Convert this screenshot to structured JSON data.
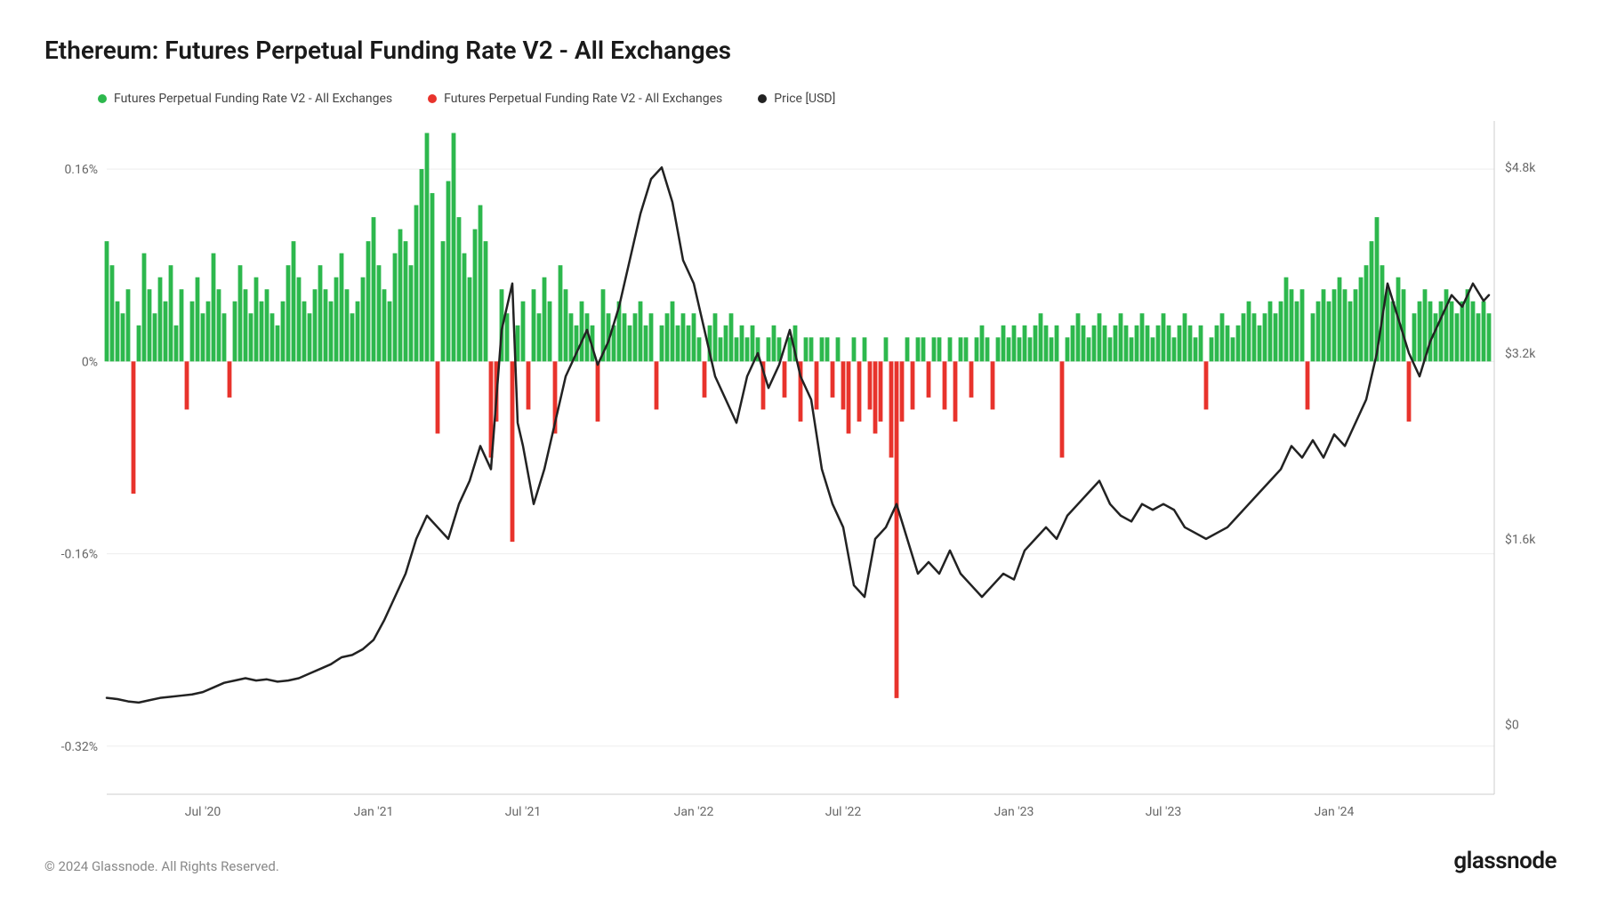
{
  "title": "Ethereum: Futures Perpetual Funding Rate V2 - All Exchanges",
  "copyright": "© 2024 Glassnode. All Rights Reserved.",
  "brand": "glassnode",
  "legend": {
    "pos": {
      "label": "Futures Perpetual Funding Rate V2 - All Exchanges",
      "color": "#2db84d"
    },
    "neg": {
      "label": "Futures Perpetual Funding Rate V2 - All Exchanges",
      "color": "#e8332c"
    },
    "price": {
      "label": "Price [USD]",
      "color": "#222222"
    }
  },
  "chart": {
    "type": "combo-bar-line",
    "background": "#ffffff",
    "grid_color": "#ededed",
    "axis_color": "#cccccc",
    "tick_color": "#666666",
    "tick_fontsize": 14,
    "left_axis": {
      "min": -0.0036,
      "max": 0.002,
      "ticks": [
        {
          "v": 0.0016,
          "label": "0.16%"
        },
        {
          "v": 0,
          "label": "0%"
        },
        {
          "v": -0.0016,
          "label": "-0.16%"
        },
        {
          "v": -0.0032,
          "label": "-0.32%"
        }
      ],
      "zero": 0
    },
    "right_axis": {
      "min": -600,
      "max": 5200,
      "ticks": [
        {
          "v": 4800,
          "label": "$4.8k"
        },
        {
          "v": 3200,
          "label": "$3.2k"
        },
        {
          "v": 1600,
          "label": "$1.6k"
        },
        {
          "v": 0,
          "label": "$0"
        }
      ]
    },
    "x_axis": {
      "min": 0,
      "max": 260,
      "ticks": [
        {
          "v": 18,
          "label": "Jul '20"
        },
        {
          "v": 50,
          "label": "Jan '21"
        },
        {
          "v": 78,
          "label": "Jul '21"
        },
        {
          "v": 110,
          "label": "Jan '22"
        },
        {
          "v": 138,
          "label": "Jul '22"
        },
        {
          "v": 170,
          "label": "Jan '23"
        },
        {
          "v": 198,
          "label": "Jul '23"
        },
        {
          "v": 230,
          "label": "Jan '24"
        }
      ]
    },
    "bars": [
      [
        0,
        0.001
      ],
      [
        1,
        0.0008
      ],
      [
        2,
        0.0005
      ],
      [
        3,
        0.0004
      ],
      [
        4,
        0.0006
      ],
      [
        5,
        -0.0011
      ],
      [
        6,
        0.0003
      ],
      [
        7,
        0.0009
      ],
      [
        8,
        0.0006
      ],
      [
        9,
        0.0004
      ],
      [
        10,
        0.0007
      ],
      [
        11,
        0.0005
      ],
      [
        12,
        0.0008
      ],
      [
        13,
        0.0003
      ],
      [
        14,
        0.0006
      ],
      [
        15,
        -0.0004
      ],
      [
        16,
        0.0005
      ],
      [
        17,
        0.0007
      ],
      [
        18,
        0.0004
      ],
      [
        19,
        0.0005
      ],
      [
        20,
        0.0009
      ],
      [
        21,
        0.0006
      ],
      [
        22,
        0.0004
      ],
      [
        23,
        -0.0003
      ],
      [
        24,
        0.0005
      ],
      [
        25,
        0.0008
      ],
      [
        26,
        0.0006
      ],
      [
        27,
        0.0004
      ],
      [
        28,
        0.0007
      ],
      [
        29,
        0.0005
      ],
      [
        30,
        0.0006
      ],
      [
        31,
        0.0004
      ],
      [
        32,
        0.0003
      ],
      [
        33,
        0.0005
      ],
      [
        34,
        0.0008
      ],
      [
        35,
        0.001
      ],
      [
        36,
        0.0007
      ],
      [
        37,
        0.0005
      ],
      [
        38,
        0.0004
      ],
      [
        39,
        0.0006
      ],
      [
        40,
        0.0008
      ],
      [
        41,
        0.0006
      ],
      [
        42,
        0.0005
      ],
      [
        43,
        0.0007
      ],
      [
        44,
        0.0009
      ],
      [
        45,
        0.0006
      ],
      [
        46,
        0.0004
      ],
      [
        47,
        0.0005
      ],
      [
        48,
        0.0007
      ],
      [
        49,
        0.001
      ],
      [
        50,
        0.0012
      ],
      [
        51,
        0.0008
      ],
      [
        52,
        0.0006
      ],
      [
        53,
        0.0005
      ],
      [
        54,
        0.0009
      ],
      [
        55,
        0.0011
      ],
      [
        56,
        0.001
      ],
      [
        57,
        0.0008
      ],
      [
        58,
        0.0013
      ],
      [
        59,
        0.0016
      ],
      [
        60,
        0.0019
      ],
      [
        61,
        0.0014
      ],
      [
        62,
        -0.0006
      ],
      [
        63,
        0.001
      ],
      [
        64,
        0.0015
      ],
      [
        65,
        0.0019
      ],
      [
        66,
        0.0012
      ],
      [
        67,
        0.0009
      ],
      [
        68,
        0.0007
      ],
      [
        69,
        0.0011
      ],
      [
        70,
        0.0013
      ],
      [
        71,
        0.001
      ],
      [
        72,
        -0.0008
      ],
      [
        73,
        -0.0005
      ],
      [
        74,
        0.0006
      ],
      [
        75,
        0.0004
      ],
      [
        76,
        -0.0015
      ],
      [
        77,
        0.0003
      ],
      [
        78,
        0.0005
      ],
      [
        79,
        -0.0004
      ],
      [
        80,
        0.0006
      ],
      [
        81,
        0.0004
      ],
      [
        82,
        0.0007
      ],
      [
        83,
        0.0005
      ],
      [
        84,
        -0.0006
      ],
      [
        85,
        0.0008
      ],
      [
        86,
        0.0006
      ],
      [
        87,
        0.0004
      ],
      [
        88,
        0.0003
      ],
      [
        89,
        0.0005
      ],
      [
        90,
        0.0004
      ],
      [
        91,
        0.0003
      ],
      [
        92,
        -0.0005
      ],
      [
        93,
        0.0006
      ],
      [
        94,
        0.0004
      ],
      [
        95,
        0.0003
      ],
      [
        96,
        0.0005
      ],
      [
        97,
        0.0004
      ],
      [
        98,
        0.0003
      ],
      [
        99,
        0.0004
      ],
      [
        100,
        0.0005
      ],
      [
        101,
        0.0003
      ],
      [
        102,
        0.0004
      ],
      [
        103,
        -0.0004
      ],
      [
        104,
        0.0003
      ],
      [
        105,
        0.0004
      ],
      [
        106,
        0.0005
      ],
      [
        107,
        0.0003
      ],
      [
        108,
        0.0004
      ],
      [
        109,
        0.0003
      ],
      [
        110,
        0.0004
      ],
      [
        111,
        0.0002
      ],
      [
        112,
        -0.0003
      ],
      [
        113,
        0.0003
      ],
      [
        114,
        0.0004
      ],
      [
        115,
        0.0002
      ],
      [
        116,
        0.0003
      ],
      [
        117,
        0.0004
      ],
      [
        118,
        0.0002
      ],
      [
        119,
        0.0003
      ],
      [
        120,
        0.0002
      ],
      [
        121,
        0.0003
      ],
      [
        122,
        0.0002
      ],
      [
        123,
        -0.0004
      ],
      [
        124,
        0.0002
      ],
      [
        125,
        0.0003
      ],
      [
        126,
        0.0002
      ],
      [
        127,
        -0.0003
      ],
      [
        128,
        0.0002
      ],
      [
        129,
        0.0003
      ],
      [
        130,
        -0.0005
      ],
      [
        131,
        0.0002
      ],
      [
        132,
        0.0002
      ],
      [
        133,
        -0.0004
      ],
      [
        134,
        0.0002
      ],
      [
        135,
        0.0002
      ],
      [
        136,
        -0.0003
      ],
      [
        137,
        0.0002
      ],
      [
        138,
        -0.0004
      ],
      [
        139,
        -0.0006
      ],
      [
        140,
        0.0002
      ],
      [
        141,
        -0.0005
      ],
      [
        142,
        0.0002
      ],
      [
        143,
        -0.0004
      ],
      [
        144,
        -0.0006
      ],
      [
        145,
        -0.0005
      ],
      [
        146,
        0.0002
      ],
      [
        147,
        -0.0008
      ],
      [
        148,
        -0.0028
      ],
      [
        149,
        -0.0005
      ],
      [
        150,
        0.0002
      ],
      [
        151,
        -0.0004
      ],
      [
        152,
        0.0002
      ],
      [
        153,
        0.0002
      ],
      [
        154,
        -0.0003
      ],
      [
        155,
        0.0002
      ],
      [
        156,
        0.0002
      ],
      [
        157,
        -0.0004
      ],
      [
        158,
        0.0002
      ],
      [
        159,
        -0.0005
      ],
      [
        160,
        0.0002
      ],
      [
        161,
        0.0002
      ],
      [
        162,
        -0.0003
      ],
      [
        163,
        0.0002
      ],
      [
        164,
        0.0003
      ],
      [
        165,
        0.0002
      ],
      [
        166,
        -0.0004
      ],
      [
        167,
        0.0002
      ],
      [
        168,
        0.0003
      ],
      [
        169,
        0.0002
      ],
      [
        170,
        0.0003
      ],
      [
        171,
        0.0002
      ],
      [
        172,
        0.0003
      ],
      [
        173,
        0.0002
      ],
      [
        174,
        0.0003
      ],
      [
        175,
        0.0004
      ],
      [
        176,
        0.0003
      ],
      [
        177,
        0.0002
      ],
      [
        178,
        0.0003
      ],
      [
        179,
        -0.0008
      ],
      [
        180,
        0.0002
      ],
      [
        181,
        0.0003
      ],
      [
        182,
        0.0004
      ],
      [
        183,
        0.0003
      ],
      [
        184,
        0.0002
      ],
      [
        185,
        0.0003
      ],
      [
        186,
        0.0004
      ],
      [
        187,
        0.0003
      ],
      [
        188,
        0.0002
      ],
      [
        189,
        0.0003
      ],
      [
        190,
        0.0004
      ],
      [
        191,
        0.0003
      ],
      [
        192,
        0.0002
      ],
      [
        193,
        0.0003
      ],
      [
        194,
        0.0004
      ],
      [
        195,
        0.0003
      ],
      [
        196,
        0.0002
      ],
      [
        197,
        0.0003
      ],
      [
        198,
        0.0004
      ],
      [
        199,
        0.0003
      ],
      [
        200,
        0.0002
      ],
      [
        201,
        0.0003
      ],
      [
        202,
        0.0004
      ],
      [
        203,
        0.0003
      ],
      [
        204,
        0.0002
      ],
      [
        205,
        0.0003
      ],
      [
        206,
        -0.0004
      ],
      [
        207,
        0.0002
      ],
      [
        208,
        0.0003
      ],
      [
        209,
        0.0004
      ],
      [
        210,
        0.0003
      ],
      [
        211,
        0.0002
      ],
      [
        212,
        0.0003
      ],
      [
        213,
        0.0004
      ],
      [
        214,
        0.0005
      ],
      [
        215,
        0.0004
      ],
      [
        216,
        0.0003
      ],
      [
        217,
        0.0004
      ],
      [
        218,
        0.0005
      ],
      [
        219,
        0.0004
      ],
      [
        220,
        0.0005
      ],
      [
        221,
        0.0007
      ],
      [
        222,
        0.0006
      ],
      [
        223,
        0.0005
      ],
      [
        224,
        0.0006
      ],
      [
        225,
        -0.0004
      ],
      [
        226,
        0.0004
      ],
      [
        227,
        0.0005
      ],
      [
        228,
        0.0006
      ],
      [
        229,
        0.0005
      ],
      [
        230,
        0.0006
      ],
      [
        231,
        0.0007
      ],
      [
        232,
        0.0006
      ],
      [
        233,
        0.0005
      ],
      [
        234,
        0.0006
      ],
      [
        235,
        0.0007
      ],
      [
        236,
        0.0008
      ],
      [
        237,
        0.001
      ],
      [
        238,
        0.0012
      ],
      [
        239,
        0.0008
      ],
      [
        240,
        0.0006
      ],
      [
        241,
        0.0005
      ],
      [
        242,
        0.0007
      ],
      [
        243,
        0.0006
      ],
      [
        244,
        -0.0005
      ],
      [
        245,
        0.0004
      ],
      [
        246,
        0.0005
      ],
      [
        247,
        0.0006
      ],
      [
        248,
        0.0005
      ],
      [
        249,
        0.0004
      ],
      [
        250,
        0.0005
      ],
      [
        251,
        0.0006
      ],
      [
        252,
        0.0005
      ],
      [
        253,
        0.0004
      ],
      [
        254,
        0.0005
      ],
      [
        255,
        0.0006
      ],
      [
        256,
        0.0005
      ],
      [
        257,
        0.0004
      ],
      [
        258,
        0.0005
      ],
      [
        259,
        0.0004
      ]
    ],
    "price": [
      [
        0,
        230
      ],
      [
        2,
        220
      ],
      [
        4,
        200
      ],
      [
        6,
        190
      ],
      [
        8,
        210
      ],
      [
        10,
        230
      ],
      [
        12,
        240
      ],
      [
        14,
        250
      ],
      [
        16,
        260
      ],
      [
        18,
        280
      ],
      [
        20,
        320
      ],
      [
        22,
        360
      ],
      [
        24,
        380
      ],
      [
        26,
        400
      ],
      [
        28,
        380
      ],
      [
        30,
        390
      ],
      [
        32,
        370
      ],
      [
        34,
        380
      ],
      [
        36,
        400
      ],
      [
        38,
        440
      ],
      [
        40,
        480
      ],
      [
        42,
        520
      ],
      [
        44,
        580
      ],
      [
        46,
        600
      ],
      [
        48,
        650
      ],
      [
        50,
        730
      ],
      [
        52,
        900
      ],
      [
        54,
        1100
      ],
      [
        56,
        1300
      ],
      [
        58,
        1600
      ],
      [
        60,
        1800
      ],
      [
        62,
        1700
      ],
      [
        64,
        1600
      ],
      [
        66,
        1900
      ],
      [
        68,
        2100
      ],
      [
        70,
        2400
      ],
      [
        72,
        2200
      ],
      [
        74,
        3400
      ],
      [
        76,
        3800
      ],
      [
        77,
        2600
      ],
      [
        78,
        2400
      ],
      [
        80,
        1900
      ],
      [
        82,
        2200
      ],
      [
        84,
        2600
      ],
      [
        86,
        3000
      ],
      [
        88,
        3200
      ],
      [
        90,
        3400
      ],
      [
        92,
        3100
      ],
      [
        94,
        3300
      ],
      [
        96,
        3600
      ],
      [
        98,
        4000
      ],
      [
        100,
        4400
      ],
      [
        102,
        4700
      ],
      [
        104,
        4800
      ],
      [
        106,
        4500
      ],
      [
        108,
        4000
      ],
      [
        110,
        3800
      ],
      [
        112,
        3400
      ],
      [
        114,
        3000
      ],
      [
        116,
        2800
      ],
      [
        118,
        2600
      ],
      [
        120,
        3000
      ],
      [
        122,
        3200
      ],
      [
        124,
        2900
      ],
      [
        126,
        3100
      ],
      [
        128,
        3400
      ],
      [
        130,
        3000
      ],
      [
        132,
        2800
      ],
      [
        134,
        2200
      ],
      [
        136,
        1900
      ],
      [
        138,
        1700
      ],
      [
        140,
        1200
      ],
      [
        142,
        1100
      ],
      [
        144,
        1600
      ],
      [
        146,
        1700
      ],
      [
        148,
        1900
      ],
      [
        150,
        1600
      ],
      [
        152,
        1300
      ],
      [
        154,
        1400
      ],
      [
        156,
        1300
      ],
      [
        158,
        1500
      ],
      [
        160,
        1300
      ],
      [
        162,
        1200
      ],
      [
        164,
        1100
      ],
      [
        166,
        1200
      ],
      [
        168,
        1300
      ],
      [
        170,
        1250
      ],
      [
        172,
        1500
      ],
      [
        174,
        1600
      ],
      [
        176,
        1700
      ],
      [
        178,
        1600
      ],
      [
        180,
        1800
      ],
      [
        182,
        1900
      ],
      [
        184,
        2000
      ],
      [
        186,
        2100
      ],
      [
        188,
        1900
      ],
      [
        190,
        1800
      ],
      [
        192,
        1750
      ],
      [
        194,
        1900
      ],
      [
        196,
        1850
      ],
      [
        198,
        1900
      ],
      [
        200,
        1850
      ],
      [
        202,
        1700
      ],
      [
        204,
        1650
      ],
      [
        206,
        1600
      ],
      [
        208,
        1650
      ],
      [
        210,
        1700
      ],
      [
        212,
        1800
      ],
      [
        214,
        1900
      ],
      [
        216,
        2000
      ],
      [
        218,
        2100
      ],
      [
        220,
        2200
      ],
      [
        222,
        2400
      ],
      [
        224,
        2300
      ],
      [
        226,
        2450
      ],
      [
        228,
        2300
      ],
      [
        230,
        2500
      ],
      [
        232,
        2400
      ],
      [
        234,
        2600
      ],
      [
        236,
        2800
      ],
      [
        238,
        3200
      ],
      [
        240,
        3800
      ],
      [
        242,
        3500
      ],
      [
        244,
        3200
      ],
      [
        246,
        3000
      ],
      [
        248,
        3300
      ],
      [
        250,
        3500
      ],
      [
        252,
        3700
      ],
      [
        254,
        3600
      ],
      [
        256,
        3800
      ],
      [
        258,
        3650
      ],
      [
        259,
        3700
      ]
    ],
    "price_color": "#222222",
    "pos_color": "#2db84d",
    "neg_color": "#e8332c",
    "line_width": 2.5
  }
}
